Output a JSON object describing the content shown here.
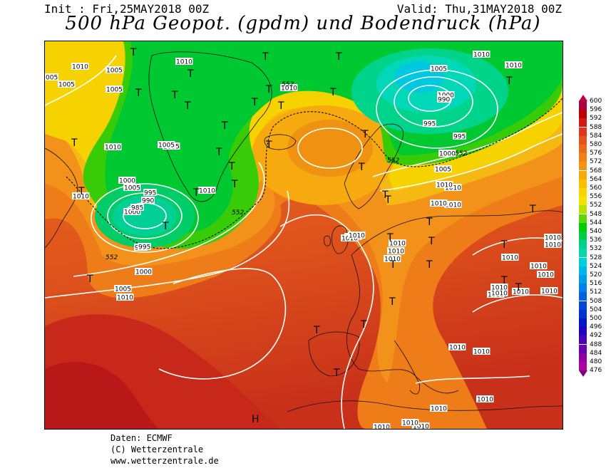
{
  "header": {
    "init": "Init : Fri,25MAY2018 00Z",
    "valid": "Valid: Thu,31MAY2018 00Z",
    "title": "500 hPa Geopot. (gpdm) und Bodendruck (hPa)"
  },
  "map": {
    "isobar_labels": [
      "1010",
      "1005",
      "1010",
      "005",
      "1005",
      "1010",
      "1005",
      "1005",
      "1000",
      "1005",
      "1000",
      "995",
      "990",
      "985",
      "995",
      "1000",
      "1005",
      "1010",
      "1010",
      "1010",
      "1005",
      "995",
      "1010",
      "1010",
      "1010",
      "1010",
      "1010",
      "1010",
      "1010",
      "1010",
      "1010",
      "1010",
      "1010",
      "1010",
      "1010",
      "1005",
      "1010",
      "1010",
      "1010",
      "1000",
      "995",
      "990",
      "995",
      "1000",
      "1005",
      "1010",
      "1010",
      "1010",
      "1010",
      "1010",
      "1010",
      "1010",
      "1010",
      "1010",
      "1010",
      "1010",
      "1010",
      "1010",
      "1010"
    ],
    "geopot_labels": [
      "552",
      "552",
      "552",
      "552",
      "552"
    ],
    "low_symbols": [
      "T",
      "T",
      "T",
      "T",
      "T",
      "T",
      "T",
      "T",
      "T",
      "T",
      "T",
      "T",
      "T",
      "T",
      "T",
      "T",
      "T",
      "T",
      "T",
      "T",
      "T",
      "T",
      "T",
      "T",
      "T",
      "T",
      "T",
      "T",
      "T",
      "T",
      "T",
      "T",
      "T",
      "T",
      "T",
      "T",
      "T",
      "T",
      "T"
    ],
    "high_symbols": [
      "H"
    ]
  },
  "legend": {
    "colors": [
      "#c0004a",
      "#a80040",
      "#c00000",
      "#d01c10",
      "#e0341e",
      "#e6511e",
      "#eb6a1a",
      "#ef8116",
      "#f39510",
      "#f7aa10",
      "#f8c000",
      "#f8d400",
      "#f2e400",
      "#b8e000",
      "#5ed800",
      "#00cc00",
      "#00cc48",
      "#00d08a",
      "#00d8b0",
      "#00d0d8",
      "#00b8e8",
      "#009ce8",
      "#0080e8",
      "#0062e0",
      "#0046d8",
      "#0030d0",
      "#0016c8",
      "#2000c0",
      "#4800b8",
      "#6a00b0",
      "#8c00a8",
      "#b000a0",
      "#7a0078"
    ],
    "labels": [
      "600",
      "596",
      "592",
      "588",
      "584",
      "580",
      "576",
      "572",
      "568",
      "564",
      "560",
      "556",
      "552",
      "548",
      "544",
      "540",
      "536",
      "532",
      "528",
      "524",
      "520",
      "516",
      "512",
      "508",
      "504",
      "500",
      "496",
      "492",
      "488",
      "484",
      "480",
      "476"
    ]
  },
  "footer": {
    "line1": "Daten: ECMWF",
    "line2": "(C) Wetterzentrale",
    "line3": "www.wetterzentrale.de"
  }
}
